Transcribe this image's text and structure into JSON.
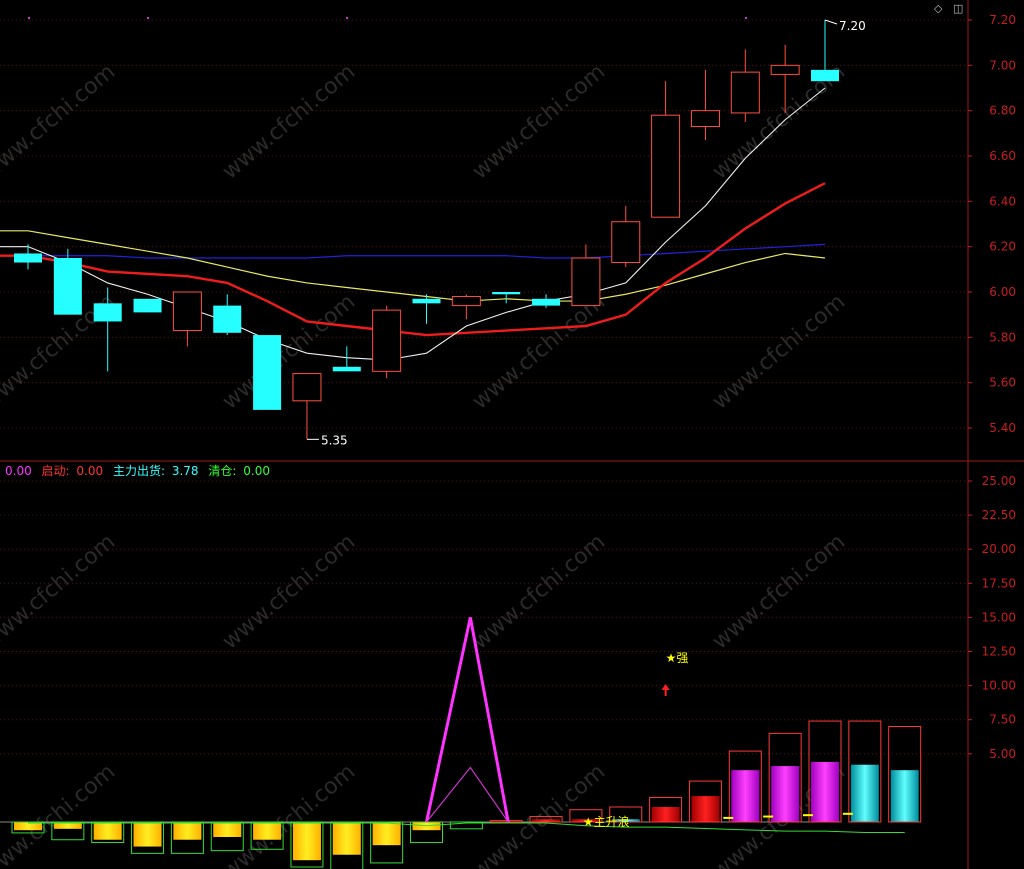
{
  "watermark": "www.cfchi.com",
  "main_panel": {
    "y_ticks": [
      "7.20",
      "7.00",
      "6.80",
      "6.60",
      "6.40",
      "6.20",
      "6.00",
      "5.80",
      "5.60",
      "5.40"
    ],
    "high_label": "7.20",
    "low_label": "5.35"
  },
  "indicator_panel": {
    "legend": [
      {
        "name": "",
        "value": "0.00",
        "color": "#ff33ff"
      },
      {
        "name": "启动:",
        "value": "0.00",
        "color": "#ff3333"
      },
      {
        "name": "主力出货:",
        "value": "3.78",
        "color": "#33ffff"
      },
      {
        "name": "清仓:",
        "value": "0.00",
        "color": "#33ff33"
      }
    ],
    "y_ticks": [
      "25.00",
      "22.50",
      "20.00",
      "17.50",
      "15.00",
      "12.50",
      "10.00",
      "7.50",
      "5.00"
    ],
    "signal_strong": "★强",
    "signal_wave": "★主升浪"
  },
  "chart_data": [
    {
      "type": "candlestick",
      "ylim": [
        5.3,
        7.25
      ],
      "ticks": [
        7.2,
        7.0,
        6.8,
        6.6,
        6.4,
        6.2,
        6.0,
        5.8,
        5.6,
        5.4
      ],
      "candles": [
        {
          "o": 6.17,
          "h": 6.21,
          "l": 6.1,
          "c": 6.13
        },
        {
          "o": 6.15,
          "h": 6.19,
          "l": 5.9,
          "c": 5.9
        },
        {
          "o": 5.95,
          "h": 6.02,
          "l": 5.65,
          "c": 5.87
        },
        {
          "o": 5.97,
          "h": 5.97,
          "l": 5.91,
          "c": 5.91
        },
        {
          "o": 5.83,
          "h": 6.0,
          "l": 5.76,
          "c": 6.0
        },
        {
          "o": 5.94,
          "h": 5.99,
          "l": 5.81,
          "c": 5.82
        },
        {
          "o": 5.81,
          "h": 5.81,
          "l": 5.48,
          "c": 5.48
        },
        {
          "o": 5.52,
          "h": 5.64,
          "l": 5.35,
          "c": 5.64
        },
        {
          "o": 5.67,
          "h": 5.76,
          "l": 5.65,
          "c": 5.65
        },
        {
          "o": 5.65,
          "h": 5.94,
          "l": 5.62,
          "c": 5.92
        },
        {
          "o": 5.97,
          "h": 5.99,
          "l": 5.86,
          "c": 5.95
        },
        {
          "o": 5.94,
          "h": 5.99,
          "l": 5.88,
          "c": 5.98
        },
        {
          "o": 6.0,
          "h": 6.0,
          "l": 5.95,
          "c": 5.99
        },
        {
          "o": 5.97,
          "h": 5.99,
          "l": 5.93,
          "c": 5.94
        },
        {
          "o": 5.94,
          "h": 6.21,
          "l": 5.94,
          "c": 6.15
        },
        {
          "o": 6.13,
          "h": 6.38,
          "l": 6.11,
          "c": 6.31
        },
        {
          "o": 6.33,
          "h": 6.93,
          "l": 6.33,
          "c": 6.78
        },
        {
          "o": 6.73,
          "h": 6.98,
          "l": 6.67,
          "c": 6.8
        },
        {
          "o": 6.79,
          "h": 7.07,
          "l": 6.75,
          "c": 6.97
        },
        {
          "o": 6.96,
          "h": 7.09,
          "l": 6.79,
          "c": 7.0
        },
        {
          "o": 6.98,
          "h": 7.2,
          "l": 6.93,
          "c": 6.93
        }
      ],
      "ma_white": [
        6.2,
        6.13,
        6.04,
        5.99,
        5.93,
        5.87,
        5.79,
        5.73,
        5.71,
        5.7,
        5.73,
        5.85,
        5.91,
        5.96,
        5.99,
        6.04,
        6.22,
        6.38,
        6.59,
        6.76,
        6.9
      ],
      "ma_yellow": [
        6.27,
        6.24,
        6.21,
        6.18,
        6.15,
        6.11,
        6.07,
        6.04,
        6.02,
        6.0,
        5.98,
        5.96,
        5.97,
        5.96,
        5.96,
        5.99,
        6.03,
        6.08,
        6.13,
        6.17,
        6.15
      ],
      "ma_red": [
        6.16,
        6.13,
        6.09,
        6.08,
        6.07,
        6.04,
        5.96,
        5.87,
        5.85,
        5.83,
        5.81,
        5.82,
        5.83,
        5.84,
        5.85,
        5.9,
        6.04,
        6.15,
        6.28,
        6.39,
        6.48
      ],
      "ma_blue": [
        6.16,
        6.16,
        6.16,
        6.15,
        6.15,
        6.15,
        6.15,
        6.15,
        6.16,
        6.16,
        6.16,
        6.16,
        6.16,
        6.15,
        6.15,
        6.16,
        6.17,
        6.18,
        6.19,
        6.2,
        6.21
      ]
    },
    {
      "type": "bar",
      "ylim": [
        -3.5,
        26
      ],
      "ticks": [
        25,
        22.5,
        20,
        17.5,
        15,
        12.5,
        10,
        7.5,
        5
      ],
      "bars": [
        {
          "outline": -0.8,
          "fill": -0.6,
          "kind": "yellow"
        },
        {
          "outline": -1.3,
          "fill": -0.5,
          "kind": "yellow"
        },
        {
          "outline": -1.5,
          "fill": -1.3,
          "kind": "yellow"
        },
        {
          "outline": -2.3,
          "fill": -1.8,
          "kind": "yellow"
        },
        {
          "outline": -2.3,
          "fill": -1.3,
          "kind": "yellow"
        },
        {
          "outline": -2.1,
          "fill": -1.1,
          "kind": "yellow"
        },
        {
          "outline": -2.0,
          "fill": -1.3,
          "kind": "yellow"
        },
        {
          "outline": -3.3,
          "fill": -2.8,
          "kind": "yellow"
        },
        {
          "outline": -3.5,
          "fill": -2.4,
          "kind": "yellow"
        },
        {
          "outline": -3.0,
          "fill": -1.7,
          "kind": "yellow"
        },
        {
          "outline": -1.5,
          "fill": -0.6,
          "kind": "yellow"
        },
        {
          "outline": -0.5,
          "fill": 0,
          "kind": "none"
        },
        {
          "outline": 0.1,
          "fill": 0,
          "kind": "none"
        },
        {
          "outline": 0.4,
          "fill": 0.2,
          "kind": "red"
        },
        {
          "outline": 0.9,
          "fill": 0.2,
          "kind": "red"
        },
        {
          "outline": 1.1,
          "fill": 0.2,
          "kind": "cyan"
        },
        {
          "outline": 1.8,
          "fill": 1.1,
          "kind": "red"
        },
        {
          "outline": 3.0,
          "fill": 1.9,
          "kind": "red"
        },
        {
          "outline": 5.2,
          "fill": 3.8,
          "kind": "magenta"
        },
        {
          "outline": 6.5,
          "fill": 4.1,
          "kind": "magenta"
        },
        {
          "outline": 7.4,
          "fill": 4.4,
          "kind": "magenta"
        },
        {
          "outline": 7.4,
          "fill": 4.2,
          "kind": "cyan"
        },
        {
          "outline": 7.0,
          "fill": 3.8,
          "kind": "cyan"
        }
      ],
      "spike_outer": [
        0,
        15,
        0
      ],
      "spike_inner": [
        0,
        4,
        0
      ],
      "green_line": [
        0,
        0,
        0,
        0,
        0,
        0,
        0,
        0,
        0,
        0,
        -0.2,
        0,
        0,
        0,
        -0.2,
        -0.3,
        -0.3,
        -0.4,
        -0.5,
        -0.6,
        -0.6,
        -0.7,
        -0.7
      ],
      "yellow_dashes": [
        0.3,
        0.4,
        0.5,
        0.6
      ]
    }
  ]
}
